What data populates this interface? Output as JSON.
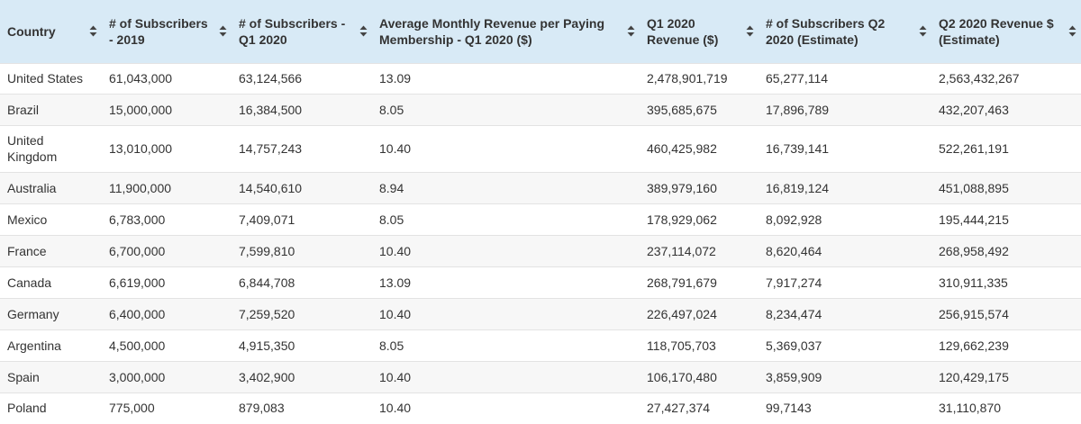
{
  "table": {
    "columns": [
      {
        "label": "Country"
      },
      {
        "label": "# of Subscribers - 2019"
      },
      {
        "label": "# of Subscribers - Q1 2020"
      },
      {
        "label": "Average Monthly Revenue per Paying Membership - Q1 2020 ($)"
      },
      {
        "label": "Q1 2020 Revenue ($)"
      },
      {
        "label": "# of Subscribers Q2 2020 (Estimate)"
      },
      {
        "label": "Q2 2020 Revenue $ (Estimate)"
      }
    ],
    "rows": [
      [
        "United States",
        "61,043,000",
        "63,124,566",
        "13.09",
        "2,478,901,719",
        "65,277,114",
        "2,563,432,267"
      ],
      [
        "Brazil",
        "15,000,000",
        "16,384,500",
        "8.05",
        "395,685,675",
        "17,896,789",
        "432,207,463"
      ],
      [
        "United Kingdom",
        "13,010,000",
        "14,757,243",
        "10.40",
        "460,425,982",
        "16,739,141",
        "522,261,191"
      ],
      [
        "Australia",
        "11,900,000",
        "14,540,610",
        "8.94",
        "389,979,160",
        "16,819,124",
        "451,088,895"
      ],
      [
        "Mexico",
        "6,783,000",
        "7,409,071",
        "8.05",
        "178,929,062",
        "8,092,928",
        "195,444,215"
      ],
      [
        "France",
        "6,700,000",
        "7,599,810",
        "10.40",
        "237,114,072",
        "8,620,464",
        "268,958,492"
      ],
      [
        "Canada",
        "6,619,000",
        "6,844,708",
        "13.09",
        "268,791,679",
        "7,917,274",
        "310,911,335"
      ],
      [
        "Germany",
        "6,400,000",
        "7,259,520",
        "10.40",
        "226,497,024",
        "8,234,474",
        "256,915,574"
      ],
      [
        "Argentina",
        "4,500,000",
        "4,915,350",
        "8.05",
        "118,705,703",
        "5,369,037",
        "129,662,239"
      ],
      [
        "Spain",
        "3,000,000",
        "3,402,900",
        "10.40",
        "106,170,480",
        "3,859,909",
        "120,429,175"
      ],
      [
        "Poland",
        "775,000",
        "879,083",
        "10.40",
        "27,427,374",
        "99,7143",
        "31,110,870"
      ]
    ]
  },
  "icons": {
    "sort": "sort-icon"
  },
  "colors": {
    "header_background": "#d8eaf6",
    "row_alt_background": "#f7f7f7",
    "row_border": "#e3e3e3",
    "text": "#333333"
  }
}
